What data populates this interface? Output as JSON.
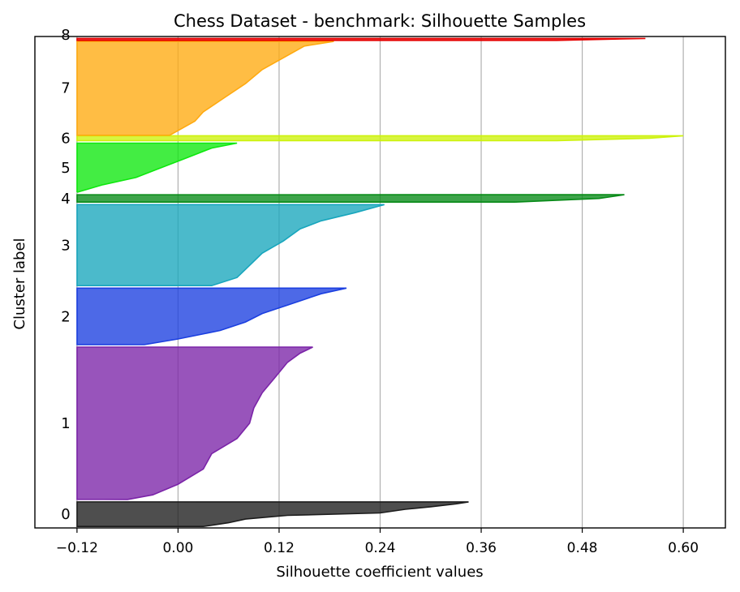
{
  "chart_data": {
    "type": "area",
    "title": "Chess Dataset - benchmark: Silhouette Samples",
    "xlabel": "Silhouette coefficient values",
    "ylabel": "Cluster label",
    "xlim": [
      -0.17,
      0.65
    ],
    "ylim": [
      0,
      100
    ],
    "grid": "vertical",
    "xticks": [
      -0.12,
      0.0,
      0.12,
      0.24,
      0.36,
      0.48,
      0.6
    ],
    "xtick_labels": [
      "−0.12",
      "0.00",
      "0.12",
      "0.24",
      "0.36",
      "0.48",
      "0.60"
    ],
    "clusters": [
      {
        "label": "0",
        "color": "#1c1c1c",
        "y_start": 0.3,
        "y_end": 5.3,
        "profile": [
          [
            0,
            0.345
          ],
          [
            0.08,
            0.33
          ],
          [
            0.2,
            0.3
          ],
          [
            0.3,
            0.27
          ],
          [
            0.45,
            0.24
          ],
          [
            0.55,
            0.13
          ],
          [
            0.7,
            0.08
          ],
          [
            0.85,
            0.06
          ],
          [
            0.95,
            0.04
          ],
          [
            1,
            0.03
          ]
        ]
      },
      {
        "label": "1",
        "color": "#7b24a8",
        "y_start": 5.8,
        "y_end": 36.8,
        "profile": [
          [
            0,
            0.16
          ],
          [
            0.04,
            0.145
          ],
          [
            0.1,
            0.13
          ],
          [
            0.2,
            0.115
          ],
          [
            0.3,
            0.1
          ],
          [
            0.4,
            0.09
          ],
          [
            0.5,
            0.085
          ],
          [
            0.6,
            0.07
          ],
          [
            0.7,
            0.04
          ],
          [
            0.8,
            0.03
          ],
          [
            0.9,
            0.0
          ],
          [
            0.97,
            -0.03
          ],
          [
            1,
            -0.06
          ]
        ]
      },
      {
        "label": "2",
        "color": "#1b3fe0",
        "y_start": 37.3,
        "y_end": 48.8,
        "profile": [
          [
            0,
            0.2
          ],
          [
            0.1,
            0.17
          ],
          [
            0.2,
            0.15
          ],
          [
            0.3,
            0.13
          ],
          [
            0.45,
            0.1
          ],
          [
            0.6,
            0.08
          ],
          [
            0.75,
            0.05
          ],
          [
            0.9,
            0.0
          ],
          [
            1,
            -0.04
          ]
        ]
      },
      {
        "label": "3",
        "color": "#18a6bd",
        "y_start": 49.3,
        "y_end": 65.8,
        "profile": [
          [
            0,
            0.245
          ],
          [
            0.1,
            0.21
          ],
          [
            0.2,
            0.17
          ],
          [
            0.3,
            0.145
          ],
          [
            0.45,
            0.125
          ],
          [
            0.6,
            0.1
          ],
          [
            0.8,
            0.08
          ],
          [
            0.9,
            0.07
          ],
          [
            1,
            0.04
          ]
        ]
      },
      {
        "label": "4",
        "color": "#078a17",
        "y_start": 66.3,
        "y_end": 67.8,
        "profile": [
          [
            0,
            0.53
          ],
          [
            0.5,
            0.5
          ],
          [
            1,
            0.4
          ]
        ]
      },
      {
        "label": "5",
        "color": "#0ee80e",
        "y_start": 68.3,
        "y_end": 78.3,
        "profile": [
          [
            0,
            0.07
          ],
          [
            0.1,
            0.04
          ],
          [
            0.3,
            0.01
          ],
          [
            0.5,
            -0.02
          ],
          [
            0.7,
            -0.05
          ],
          [
            0.85,
            -0.09
          ],
          [
            1,
            -0.12
          ]
        ]
      },
      {
        "label": "6",
        "color": "#cdf20c",
        "y_start": 78.8,
        "y_end": 79.8,
        "profile": [
          [
            0,
            0.6
          ],
          [
            0.5,
            0.56
          ],
          [
            1,
            0.45
          ]
        ]
      },
      {
        "label": "7",
        "color": "#ffaa10",
        "y_start": 79.9,
        "y_end": 99.0,
        "profile": [
          [
            0,
            0.185
          ],
          [
            0.05,
            0.15
          ],
          [
            0.15,
            0.13
          ],
          [
            0.3,
            0.1
          ],
          [
            0.45,
            0.08
          ],
          [
            0.6,
            0.055
          ],
          [
            0.75,
            0.03
          ],
          [
            0.85,
            0.02
          ],
          [
            0.95,
            0.0
          ],
          [
            1,
            -0.01
          ]
        ]
      },
      {
        "label": "8",
        "color": "#e50000",
        "y_start": 99.2,
        "y_end": 99.6,
        "profile": [
          [
            0,
            0.555
          ],
          [
            1,
            0.45
          ]
        ]
      }
    ],
    "cluster_labels": [
      {
        "text": "0",
        "y": 2.8
      },
      {
        "text": "1",
        "y": 21.3
      },
      {
        "text": "2",
        "y": 43.0
      },
      {
        "text": "3",
        "y": 57.5
      },
      {
        "text": "4",
        "y": 67.0
      },
      {
        "text": "5",
        "y": 73.3
      },
      {
        "text": "6",
        "y": 79.3
      },
      {
        "text": "7",
        "y": 89.5
      },
      {
        "text": "8",
        "y": 100.3
      }
    ]
  }
}
